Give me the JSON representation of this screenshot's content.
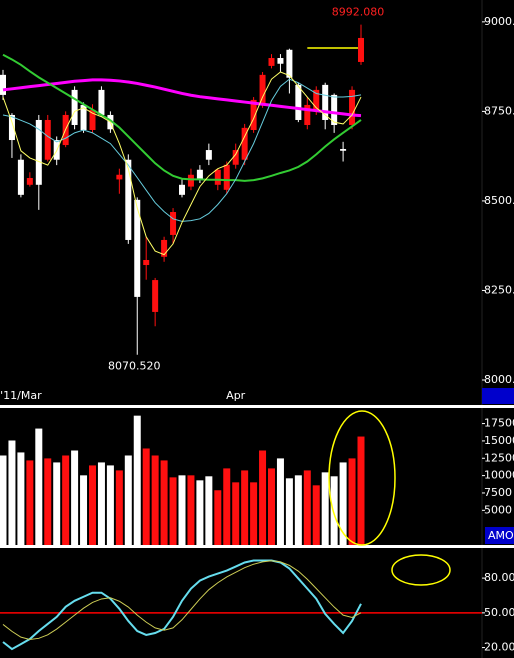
{
  "chart_data": [
    {
      "type": "candlestick",
      "categories": [
        null,
        null,
        "'11/Mar",
        null,
        null,
        null,
        null,
        null,
        null,
        null,
        null,
        null,
        null,
        null,
        null,
        null,
        null,
        null,
        null,
        null,
        null,
        null,
        null,
        null,
        null,
        null,
        "Apr",
        null,
        null,
        null,
        null,
        null,
        null,
        null,
        null,
        null,
        null,
        null,
        null,
        null,
        null
      ],
      "open": [
        8852,
        8740,
        8615,
        8545,
        8726,
        8615,
        8670,
        8656,
        8810,
        8768,
        8698,
        8810,
        8740,
        8560,
        8615,
        8503,
        8321,
        8190,
        8344,
        8405,
        8545,
        8540,
        8587,
        8642,
        8545,
        8531,
        8601,
        8615,
        8698,
        8768,
        8877,
        8899,
        8922,
        8824,
        8712,
        8754,
        8824,
        8796,
        8645,
        8712,
        8888
      ],
      "high": [
        8866,
        8745,
        8630,
        8580,
        8740,
        8740,
        8680,
        8750,
        8820,
        8775,
        8770,
        8820,
        8750,
        8590,
        8630,
        8510,
        8400,
        8285,
        8400,
        8480,
        8560,
        8590,
        8600,
        8660,
        8590,
        8610,
        8660,
        8715,
        8790,
        8860,
        8910,
        8910,
        8925,
        8830,
        8790,
        8820,
        8830,
        8800,
        8665,
        8820,
        8992.08
      ],
      "low": [
        8782,
        8620,
        8510,
        8540,
        8475,
        8610,
        8600,
        8650,
        8700,
        8690,
        8690,
        8735,
        8690,
        8520,
        8380,
        8070.52,
        8280,
        8150,
        8330,
        8380,
        8510,
        8530,
        8550,
        8600,
        8530,
        8520,
        8590,
        8600,
        8690,
        8760,
        8870,
        8860,
        8800,
        8720,
        8700,
        8740,
        8700,
        8690,
        8610,
        8700,
        8880
      ],
      "close": [
        8796,
        8670,
        8517,
        8564,
        8545,
        8726,
        8615,
        8740,
        8712,
        8698,
        8754,
        8740,
        8700,
        8573,
        8391,
        8232,
        8335,
        8279,
        8391,
        8469,
        8517,
        8573,
        8559,
        8615,
        8587,
        8601,
        8642,
        8704,
        8782,
        8852,
        8899,
        8883,
        8844,
        8726,
        8768,
        8810,
        8726,
        8712,
        8640,
        8810,
        8955
      ],
      "up_color": "#ff1010",
      "down_color": "#ffffff",
      "overlays": [
        {
          "color": "#ff00ff",
          "values": [
            8810,
            8813,
            8816,
            8819,
            8822,
            8825,
            8828,
            8831,
            8834,
            8836,
            8838,
            8838,
            8837,
            8835,
            8832,
            8828,
            8823,
            8818,
            8812,
            8806,
            8800,
            8795,
            8791,
            8788,
            8785,
            8782,
            8779,
            8776,
            8773,
            8770,
            8767,
            8764,
            8761,
            8758,
            8755,
            8752,
            8749,
            8746,
            8743,
            8740,
            8738
          ]
        },
        {
          "color": "#33cc33",
          "values": [
            8908,
            8895,
            8880,
            8862,
            8845,
            8830,
            8815,
            8800,
            8785,
            8770,
            8755,
            8740,
            8725,
            8705,
            8680,
            8655,
            8630,
            8605,
            8585,
            8570,
            8562,
            8560,
            8560,
            8559,
            8559,
            8558,
            8558,
            8556,
            8558,
            8563,
            8570,
            8578,
            8585,
            8595,
            8610,
            8630,
            8652,
            8672,
            8690,
            8708,
            8726
          ]
        },
        {
          "color": "#66ccdd",
          "values": [
            8740,
            8735,
            8725,
            8715,
            8700,
            8680,
            8665,
            8675,
            8690,
            8698,
            8690,
            8675,
            8660,
            8630,
            8600,
            8565,
            8530,
            8495,
            8470,
            8450,
            8443,
            8445,
            8450,
            8465,
            8490,
            8520,
            8560,
            8610,
            8660,
            8720,
            8780,
            8820,
            8840,
            8830,
            8815,
            8800,
            8795,
            8790,
            8790,
            8792,
            8796
          ]
        },
        {
          "color": "#ffff66",
          "values": [
            8790,
            8720,
            8640,
            8620,
            8610,
            8600,
            8640,
            8700,
            8750,
            8760,
            8745,
            8735,
            8720,
            8660,
            8590,
            8480,
            8400,
            8360,
            8350,
            8380,
            8440,
            8490,
            8540,
            8570,
            8590,
            8600,
            8630,
            8680,
            8730,
            8790,
            8840,
            8860,
            8850,
            8820,
            8790,
            8760,
            8740,
            8720,
            8715,
            8740,
            8790
          ]
        }
      ],
      "hline": {
        "value": 8927,
        "color": "#ffff00"
      },
      "annotations": [
        {
          "label": "8992.080",
          "value": 8992.08,
          "color": "#ff2020"
        },
        {
          "label": "8070.520",
          "value": 8070.52,
          "color": "#ffffff"
        }
      ],
      "ylim": [
        7986,
        9061
      ],
      "yticks": [
        {
          "value": 8000,
          "label": "8000."
        },
        {
          "value": 8250,
          "label": "8250."
        },
        {
          "value": 8500,
          "label": "8500."
        },
        {
          "value": 8750,
          "label": "8750."
        },
        {
          "value": 9000,
          "label": "9000."
        }
      ]
    },
    {
      "type": "bar",
      "label": "AMO",
      "values": [
        12900,
        15060,
        13340,
        12190,
        16780,
        12480,
        11900,
        12900,
        13620,
        10040,
        11470,
        11900,
        11470,
        10750,
        12900,
        18640,
        13910,
        12900,
        12190,
        9750,
        10040,
        10040,
        9320,
        9900,
        7890,
        11040,
        9030,
        10750,
        9030,
        13620,
        11040,
        12480,
        9610,
        10040,
        10750,
        8600,
        10470,
        9900,
        11900,
        12480,
        15630
      ],
      "ylim": [
        0,
        19600
      ],
      "yticks": [
        5000,
        7500,
        10000,
        12500,
        15000,
        17500
      ]
    },
    {
      "type": "line",
      "series": [
        {
          "color": "#66ddee",
          "values": [
            24.8,
            18.7,
            23,
            27.4,
            34.3,
            40.4,
            46.5,
            55.2,
            60.4,
            63.9,
            67.4,
            67.4,
            62.2,
            53.5,
            43,
            34.3,
            30.9,
            32.6,
            36.1,
            46.5,
            60.4,
            70.9,
            77.8,
            81.3,
            83.9,
            86.5,
            90,
            93.5,
            95.2,
            95.2,
            95.2,
            93.5,
            88.3,
            79.6,
            70.9,
            62.2,
            49.1,
            40.4,
            32.6,
            43,
            57.8
          ]
        },
        {
          "color": "#cccc55",
          "values": [
            40,
            34,
            29,
            27,
            28,
            31,
            36,
            42,
            48,
            54,
            59,
            62,
            63,
            60,
            55,
            48,
            42,
            37,
            35,
            37,
            44,
            53,
            62,
            70,
            76,
            81,
            85,
            89,
            92,
            94,
            95,
            94,
            91,
            86,
            79,
            71,
            63,
            55,
            48,
            46,
            50
          ]
        }
      ],
      "reference_line": {
        "value": 50,
        "color": "#ff0000"
      },
      "ylim": [
        11,
        106
      ],
      "yticks": [
        {
          "value": 20,
          "label": "20.00"
        },
        {
          "value": 50,
          "label": "50.00"
        },
        {
          "value": 80,
          "label": "80.00"
        }
      ]
    }
  ]
}
